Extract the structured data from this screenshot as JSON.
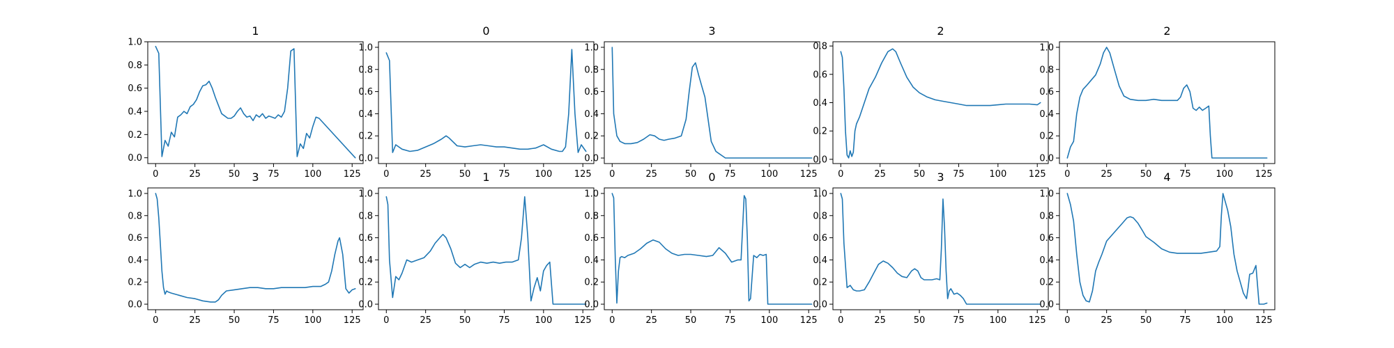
{
  "figure": {
    "line_color": "#1f77b4",
    "grid": false,
    "legend": "none"
  },
  "chart_data": [
    {
      "type": "line",
      "title": "1",
      "xlim": [
        -5,
        132
      ],
      "ylim": [
        -0.05,
        1.0
      ],
      "xticks": [
        0,
        25,
        50,
        75,
        100,
        125
      ],
      "yticks": [
        0.0,
        0.2,
        0.4,
        0.6,
        0.8,
        1.0
      ],
      "series": [
        {
          "x": [
            0,
            2,
            4,
            6,
            8,
            10,
            12,
            14,
            16,
            18,
            20,
            22,
            24,
            26,
            28,
            30,
            32,
            34,
            36,
            38,
            40,
            42,
            44,
            46,
            48,
            50,
            52,
            54,
            56,
            58,
            60,
            62,
            64,
            66,
            68,
            70,
            72,
            74,
            76,
            78,
            80,
            82,
            84,
            86,
            88,
            90,
            92,
            94,
            96,
            98,
            100,
            102,
            104,
            127
          ],
          "y": [
            0.96,
            0.9,
            0.01,
            0.15,
            0.1,
            0.22,
            0.18,
            0.35,
            0.37,
            0.4,
            0.38,
            0.44,
            0.46,
            0.5,
            0.57,
            0.62,
            0.63,
            0.66,
            0.6,
            0.52,
            0.45,
            0.38,
            0.36,
            0.34,
            0.34,
            0.36,
            0.4,
            0.43,
            0.38,
            0.35,
            0.36,
            0.32,
            0.37,
            0.35,
            0.38,
            0.34,
            0.36,
            0.35,
            0.34,
            0.37,
            0.35,
            0.4,
            0.6,
            0.92,
            0.94,
            0.01,
            0.12,
            0.08,
            0.21,
            0.17,
            0.27,
            0.35,
            0.34,
            0.0
          ]
        }
      ]
    },
    {
      "type": "line",
      "title": "0",
      "xlim": [
        -5,
        132
      ],
      "ylim": [
        -0.05,
        1.05
      ],
      "xticks": [
        0,
        25,
        50,
        75,
        100,
        125
      ],
      "yticks": [
        0.0,
        0.2,
        0.4,
        0.6,
        0.8,
        1.0
      ],
      "series": [
        {
          "x": [
            0,
            2,
            4,
            6,
            10,
            15,
            20,
            25,
            30,
            35,
            38,
            40,
            45,
            50,
            55,
            60,
            65,
            70,
            75,
            80,
            85,
            90,
            95,
            100,
            105,
            110,
            112,
            114,
            116,
            118,
            120,
            122,
            124,
            127
          ],
          "y": [
            0.95,
            0.88,
            0.05,
            0.12,
            0.08,
            0.06,
            0.07,
            0.1,
            0.13,
            0.17,
            0.2,
            0.18,
            0.11,
            0.1,
            0.11,
            0.12,
            0.11,
            0.1,
            0.1,
            0.09,
            0.08,
            0.08,
            0.09,
            0.12,
            0.08,
            0.06,
            0.06,
            0.1,
            0.4,
            0.98,
            0.4,
            0.05,
            0.12,
            0.06
          ]
        }
      ]
    },
    {
      "type": "line",
      "title": "3",
      "xlim": [
        -5,
        132
      ],
      "ylim": [
        -0.05,
        1.05
      ],
      "xticks": [
        0,
        25,
        50,
        75,
        100,
        125
      ],
      "yticks": [
        0.0,
        0.2,
        0.4,
        0.6,
        0.8,
        1.0
      ],
      "series": [
        {
          "x": [
            0,
            1,
            3,
            5,
            8,
            12,
            16,
            20,
            24,
            27,
            30,
            33,
            36,
            40,
            44,
            47,
            49,
            51,
            53,
            55,
            57,
            59,
            61,
            63,
            66,
            68,
            70,
            72,
            127
          ],
          "y": [
            1.0,
            0.4,
            0.2,
            0.15,
            0.13,
            0.13,
            0.14,
            0.17,
            0.21,
            0.2,
            0.17,
            0.16,
            0.17,
            0.18,
            0.2,
            0.35,
            0.6,
            0.82,
            0.86,
            0.75,
            0.65,
            0.55,
            0.35,
            0.15,
            0.06,
            0.04,
            0.02,
            0.0,
            0.0
          ]
        }
      ]
    },
    {
      "type": "line",
      "title": "2",
      "xlim": [
        -5,
        132
      ],
      "ylim": [
        -0.03,
        0.83
      ],
      "xticks": [
        0,
        25,
        50,
        75,
        100,
        125
      ],
      "yticks": [
        0.0,
        0.2,
        0.4,
        0.6,
        0.8
      ],
      "series": [
        {
          "x": [
            0,
            1,
            2,
            3,
            4,
            5,
            6,
            7,
            8,
            9,
            10,
            12,
            15,
            18,
            22,
            26,
            30,
            33,
            35,
            38,
            42,
            46,
            50,
            55,
            60,
            65,
            70,
            75,
            80,
            85,
            90,
            95,
            100,
            105,
            110,
            115,
            120,
            125,
            127
          ],
          "y": [
            0.76,
            0.72,
            0.5,
            0.2,
            0.03,
            0.01,
            0.06,
            0.02,
            0.05,
            0.2,
            0.25,
            0.3,
            0.4,
            0.5,
            0.58,
            0.68,
            0.76,
            0.78,
            0.76,
            0.68,
            0.58,
            0.51,
            0.47,
            0.44,
            0.42,
            0.41,
            0.4,
            0.39,
            0.38,
            0.38,
            0.38,
            0.38,
            0.385,
            0.39,
            0.39,
            0.39,
            0.39,
            0.385,
            0.4
          ]
        }
      ]
    },
    {
      "type": "line",
      "title": "2",
      "xlim": [
        -5,
        132
      ],
      "ylim": [
        -0.05,
        1.05
      ],
      "xticks": [
        0,
        25,
        50,
        75,
        100,
        125
      ],
      "yticks": [
        0.0,
        0.2,
        0.4,
        0.6,
        0.8,
        1.0
      ],
      "series": [
        {
          "x": [
            0,
            2,
            4,
            6,
            8,
            10,
            12,
            15,
            18,
            21,
            23,
            25,
            27,
            30,
            33,
            36,
            40,
            45,
            50,
            55,
            60,
            65,
            70,
            72,
            74,
            76,
            78,
            80,
            82,
            84,
            86,
            88,
            90,
            91,
            92,
            127
          ],
          "y": [
            0.0,
            0.1,
            0.15,
            0.4,
            0.55,
            0.62,
            0.65,
            0.7,
            0.75,
            0.85,
            0.95,
            1.0,
            0.95,
            0.8,
            0.65,
            0.56,
            0.53,
            0.52,
            0.52,
            0.53,
            0.52,
            0.52,
            0.52,
            0.55,
            0.63,
            0.66,
            0.6,
            0.45,
            0.43,
            0.46,
            0.43,
            0.45,
            0.47,
            0.2,
            0.0,
            0.0
          ]
        }
      ]
    },
    {
      "type": "line",
      "title": "3",
      "xlim": [
        -5,
        132
      ],
      "ylim": [
        -0.05,
        1.05
      ],
      "xticks": [
        0,
        25,
        50,
        75,
        100,
        125
      ],
      "yticks": [
        0.0,
        0.2,
        0.4,
        0.6,
        0.8,
        1.0
      ],
      "series": [
        {
          "x": [
            0,
            1,
            2,
            3,
            4,
            5,
            6,
            7,
            8,
            10,
            15,
            20,
            25,
            30,
            35,
            38,
            40,
            42,
            45,
            50,
            55,
            60,
            65,
            70,
            75,
            80,
            85,
            90,
            95,
            100,
            105,
            108,
            110,
            112,
            114,
            116,
            117,
            119,
            121,
            123,
            125,
            127
          ],
          "y": [
            1.0,
            0.95,
            0.78,
            0.55,
            0.3,
            0.15,
            0.09,
            0.12,
            0.11,
            0.1,
            0.08,
            0.06,
            0.05,
            0.03,
            0.02,
            0.02,
            0.04,
            0.08,
            0.12,
            0.13,
            0.14,
            0.15,
            0.15,
            0.14,
            0.14,
            0.15,
            0.15,
            0.15,
            0.15,
            0.16,
            0.16,
            0.18,
            0.2,
            0.3,
            0.45,
            0.57,
            0.6,
            0.45,
            0.14,
            0.1,
            0.13,
            0.14
          ]
        }
      ]
    },
    {
      "type": "line",
      "title": "1",
      "xlim": [
        -5,
        132
      ],
      "ylim": [
        -0.05,
        1.05
      ],
      "xticks": [
        0,
        25,
        50,
        75,
        100,
        125
      ],
      "yticks": [
        0.0,
        0.2,
        0.4,
        0.6,
        0.8,
        1.0
      ],
      "series": [
        {
          "x": [
            0,
            1,
            2,
            4,
            6,
            8,
            10,
            13,
            16,
            20,
            24,
            28,
            31,
            34,
            36,
            38,
            41,
            44,
            47,
            50,
            53,
            56,
            60,
            64,
            68,
            72,
            76,
            80,
            84,
            86,
            88,
            90,
            92,
            94,
            96,
            98,
            100,
            102,
            104,
            106,
            127
          ],
          "y": [
            0.97,
            0.9,
            0.4,
            0.06,
            0.25,
            0.22,
            0.28,
            0.4,
            0.38,
            0.4,
            0.42,
            0.48,
            0.55,
            0.6,
            0.63,
            0.6,
            0.5,
            0.37,
            0.33,
            0.36,
            0.33,
            0.36,
            0.38,
            0.37,
            0.38,
            0.37,
            0.38,
            0.38,
            0.4,
            0.6,
            0.97,
            0.6,
            0.03,
            0.15,
            0.24,
            0.12,
            0.3,
            0.35,
            0.38,
            0.0,
            0.0
          ]
        }
      ]
    },
    {
      "type": "line",
      "title": "0",
      "xlim": [
        -5,
        132
      ],
      "ylim": [
        -0.05,
        1.05
      ],
      "xticks": [
        0,
        25,
        50,
        75,
        100,
        125
      ],
      "yticks": [
        0.0,
        0.2,
        0.4,
        0.6,
        0.8,
        1.0
      ],
      "series": [
        {
          "x": [
            0,
            1,
            2,
            3,
            4,
            5,
            6,
            8,
            10,
            14,
            18,
            22,
            26,
            30,
            34,
            38,
            42,
            46,
            50,
            55,
            60,
            64,
            68,
            72,
            76,
            80,
            82,
            84,
            85,
            86,
            87,
            88,
            90,
            92,
            94,
            96,
            98,
            99,
            127
          ],
          "y": [
            1.0,
            0.96,
            0.4,
            0.01,
            0.3,
            0.42,
            0.43,
            0.42,
            0.44,
            0.46,
            0.5,
            0.55,
            0.58,
            0.56,
            0.5,
            0.46,
            0.44,
            0.45,
            0.45,
            0.44,
            0.43,
            0.44,
            0.51,
            0.46,
            0.38,
            0.4,
            0.4,
            0.98,
            0.95,
            0.6,
            0.03,
            0.05,
            0.44,
            0.42,
            0.45,
            0.44,
            0.45,
            0.0,
            0.0
          ]
        }
      ]
    },
    {
      "type": "line",
      "title": "3",
      "xlim": [
        -5,
        132
      ],
      "ylim": [
        -0.05,
        1.05
      ],
      "xticks": [
        0,
        25,
        50,
        75,
        100,
        125
      ],
      "yticks": [
        0.0,
        0.2,
        0.4,
        0.6,
        0.8,
        1.0
      ],
      "series": [
        {
          "x": [
            0,
            1,
            2,
            4,
            6,
            8,
            10,
            12,
            15,
            18,
            21,
            24,
            27,
            30,
            33,
            36,
            39,
            42,
            45,
            47,
            49,
            51,
            53,
            55,
            58,
            61,
            63,
            64,
            65,
            66,
            67,
            68,
            69,
            70,
            72,
            74,
            76,
            78,
            80,
            127
          ],
          "y": [
            1.0,
            0.95,
            0.55,
            0.15,
            0.17,
            0.13,
            0.12,
            0.12,
            0.13,
            0.2,
            0.28,
            0.36,
            0.39,
            0.37,
            0.33,
            0.28,
            0.25,
            0.24,
            0.3,
            0.32,
            0.3,
            0.24,
            0.22,
            0.22,
            0.22,
            0.23,
            0.22,
            0.5,
            0.95,
            0.7,
            0.3,
            0.05,
            0.12,
            0.14,
            0.09,
            0.1,
            0.08,
            0.05,
            0.0,
            0.0
          ]
        }
      ]
    },
    {
      "type": "line",
      "title": "4",
      "xlim": [
        -5,
        132
      ],
      "ylim": [
        -0.05,
        1.05
      ],
      "xticks": [
        0,
        25,
        50,
        75,
        100,
        125
      ],
      "yticks": [
        0.0,
        0.2,
        0.4,
        0.6,
        0.8,
        1.0
      ],
      "series": [
        {
          "x": [
            0,
            2,
            4,
            6,
            8,
            10,
            12,
            14,
            16,
            18,
            20,
            22,
            25,
            30,
            35,
            38,
            40,
            42,
            45,
            48,
            50,
            55,
            60,
            65,
            70,
            75,
            80,
            85,
            90,
            95,
            97,
            98,
            99,
            100,
            102,
            104,
            106,
            108,
            110,
            112,
            114,
            115,
            116,
            118,
            120,
            122,
            125,
            127
          ],
          "y": [
            1.0,
            0.9,
            0.75,
            0.45,
            0.2,
            0.08,
            0.03,
            0.02,
            0.12,
            0.3,
            0.38,
            0.45,
            0.57,
            0.65,
            0.73,
            0.78,
            0.79,
            0.78,
            0.73,
            0.66,
            0.61,
            0.56,
            0.5,
            0.47,
            0.46,
            0.46,
            0.46,
            0.46,
            0.47,
            0.48,
            0.52,
            0.8,
            1.0,
            0.95,
            0.85,
            0.7,
            0.45,
            0.3,
            0.2,
            0.1,
            0.05,
            0.15,
            0.27,
            0.28,
            0.35,
            0.0,
            0.0,
            0.01
          ]
        }
      ]
    }
  ]
}
